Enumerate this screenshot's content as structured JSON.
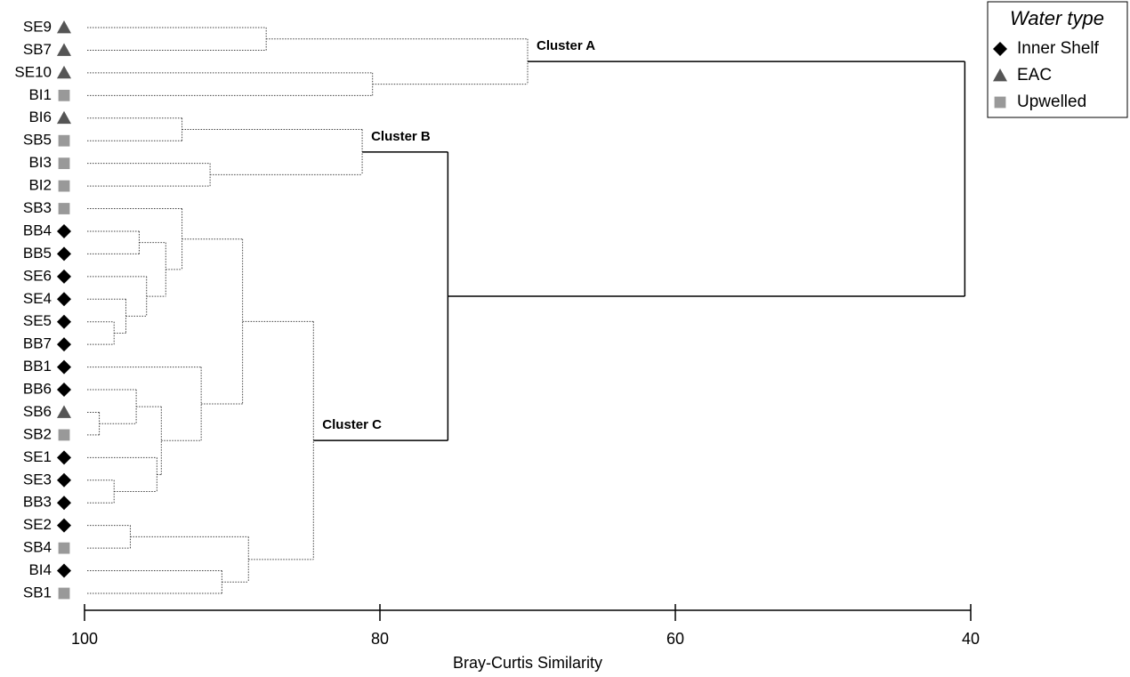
{
  "chart_data": {
    "type": "dendrogram",
    "x_label": "Bray-Curtis Similarity",
    "xlim": [
      100,
      40
    ],
    "xticks": [
      100,
      80,
      60,
      40
    ],
    "legend": {
      "title": "Water type",
      "items": [
        {
          "name": "Inner Shelf",
          "marker": "diamond",
          "color": "#000000"
        },
        {
          "name": "EAC",
          "marker": "triangle",
          "color": "#555555"
        },
        {
          "name": "Upwelled",
          "marker": "square",
          "color": "#999999"
        }
      ]
    },
    "leaves": [
      {
        "label": "SE9",
        "group": 1
      },
      {
        "label": "SB7",
        "group": 1
      },
      {
        "label": "SE10",
        "group": 1
      },
      {
        "label": "BI1",
        "group": 2
      },
      {
        "label": "BI6",
        "group": 1
      },
      {
        "label": "SB5",
        "group": 2
      },
      {
        "label": "BI3",
        "group": 2
      },
      {
        "label": "BI2",
        "group": 2
      },
      {
        "label": "SB3",
        "group": 2
      },
      {
        "label": "BB4",
        "group": 0
      },
      {
        "label": "BB5",
        "group": 0
      },
      {
        "label": "SE6",
        "group": 0
      },
      {
        "label": "SE4",
        "group": 0
      },
      {
        "label": "SE5",
        "group": 0
      },
      {
        "label": "BB7",
        "group": 0
      },
      {
        "label": "BB1",
        "group": 0
      },
      {
        "label": "BB6",
        "group": 0
      },
      {
        "label": "SB6",
        "group": 1
      },
      {
        "label": "SB2",
        "group": 2
      },
      {
        "label": "SE1",
        "group": 0
      },
      {
        "label": "SE3",
        "group": 0
      },
      {
        "label": "BB3",
        "group": 0
      },
      {
        "label": "SE2",
        "group": 0
      },
      {
        "label": "SB4",
        "group": 2
      },
      {
        "label": "BI4",
        "group": 0
      },
      {
        "label": "SB1",
        "group": 2
      }
    ],
    "merges": [
      {
        "children": [
          0,
          1
        ],
        "similarity": 87.7
      },
      {
        "children": [
          2,
          3
        ],
        "similarity": 80.5
      },
      {
        "children": [
          26,
          27
        ],
        "similarity": 70.0,
        "label": "Cluster A"
      },
      {
        "children": [
          4,
          5
        ],
        "similarity": 93.4
      },
      {
        "children": [
          6,
          7
        ],
        "similarity": 91.5
      },
      {
        "children": [
          29,
          30
        ],
        "similarity": 81.2,
        "label": "Cluster B"
      },
      {
        "children": [
          9,
          10
        ],
        "similarity": 96.3
      },
      {
        "children": [
          13,
          14
        ],
        "similarity": 98.0
      },
      {
        "children": [
          12,
          33
        ],
        "similarity": 97.2
      },
      {
        "children": [
          11,
          34
        ],
        "similarity": 95.8
      },
      {
        "children": [
          32,
          35
        ],
        "similarity": 94.5
      },
      {
        "children": [
          8,
          36
        ],
        "similarity": 93.4
      },
      {
        "children": [
          17,
          18
        ],
        "similarity": 99.0
      },
      {
        "children": [
          16,
          38
        ],
        "similarity": 96.5
      },
      {
        "children": [
          20,
          21
        ],
        "similarity": 98.0
      },
      {
        "children": [
          19,
          40
        ],
        "similarity": 95.1
      },
      {
        "children": [
          39,
          41
        ],
        "similarity": 94.8
      },
      {
        "children": [
          15,
          42
        ],
        "similarity": 92.1
      },
      {
        "children": [
          37,
          43
        ],
        "similarity": 89.3
      },
      {
        "children": [
          22,
          23
        ],
        "similarity": 96.9
      },
      {
        "children": [
          24,
          25
        ],
        "similarity": 90.7
      },
      {
        "children": [
          45,
          46
        ],
        "similarity": 88.9
      },
      {
        "children": [
          44,
          47
        ],
        "similarity": 84.5,
        "label": "Cluster C"
      },
      {
        "children": [
          31,
          48
        ],
        "similarity": 75.4
      },
      {
        "children": [
          28,
          49
        ],
        "similarity": 40.4
      }
    ]
  }
}
